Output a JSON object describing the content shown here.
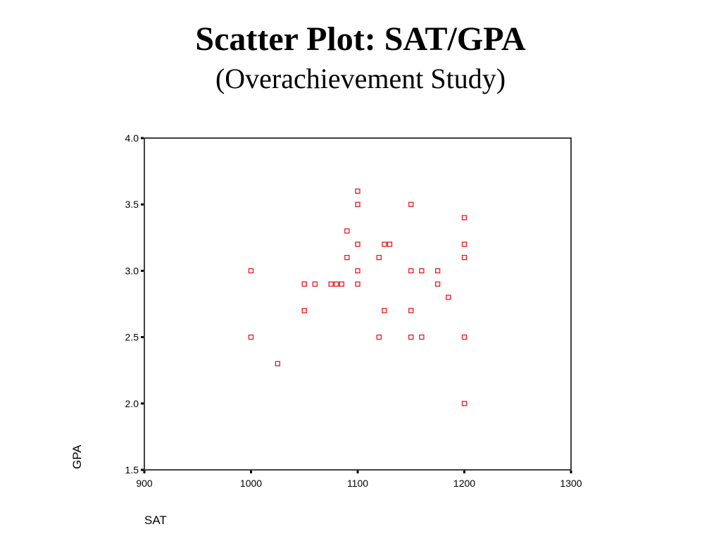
{
  "slide": {
    "title": "Scatter Plot: SAT/GPA",
    "subtitle": "(Overachievement Study)"
  },
  "colors": {
    "marker": "#e31a1c",
    "axis": "#000000",
    "background": "#ffffff"
  },
  "chart_data": {
    "type": "scatter",
    "title": "",
    "xlabel": "SAT",
    "ylabel": "GPA",
    "xlim": [
      900,
      1300
    ],
    "ylim": [
      1.5,
      4.0
    ],
    "x_ticks": [
      "900",
      "1000",
      "1100",
      "1200",
      "1300"
    ],
    "y_ticks": [
      "1.5",
      "2.0",
      "2.5",
      "3.0",
      "3.5",
      "4.0"
    ],
    "grid": false,
    "legend": "none",
    "marker": "hollow-square",
    "series": [
      {
        "points": [
          {
            "x": 1000,
            "y": 3.0
          },
          {
            "x": 1000,
            "y": 2.5
          },
          {
            "x": 1025,
            "y": 2.3
          },
          {
            "x": 1050,
            "y": 2.9
          },
          {
            "x": 1050,
            "y": 2.7
          },
          {
            "x": 1060,
            "y": 2.9
          },
          {
            "x": 1075,
            "y": 2.9
          },
          {
            "x": 1080,
            "y": 2.9
          },
          {
            "x": 1085,
            "y": 2.9
          },
          {
            "x": 1090,
            "y": 3.3
          },
          {
            "x": 1090,
            "y": 3.1
          },
          {
            "x": 1100,
            "y": 3.6
          },
          {
            "x": 1100,
            "y": 3.5
          },
          {
            "x": 1100,
            "y": 3.2
          },
          {
            "x": 1100,
            "y": 3.0
          },
          {
            "x": 1100,
            "y": 2.9
          },
          {
            "x": 1120,
            "y": 3.1
          },
          {
            "x": 1120,
            "y": 2.5
          },
          {
            "x": 1125,
            "y": 3.2
          },
          {
            "x": 1125,
            "y": 2.7
          },
          {
            "x": 1130,
            "y": 3.2
          },
          {
            "x": 1150,
            "y": 3.5
          },
          {
            "x": 1150,
            "y": 3.0
          },
          {
            "x": 1150,
            "y": 2.7
          },
          {
            "x": 1150,
            "y": 2.5
          },
          {
            "x": 1160,
            "y": 3.0
          },
          {
            "x": 1160,
            "y": 2.5
          },
          {
            "x": 1175,
            "y": 3.0
          },
          {
            "x": 1175,
            "y": 2.9
          },
          {
            "x": 1185,
            "y": 2.8
          },
          {
            "x": 1200,
            "y": 3.4
          },
          {
            "x": 1200,
            "y": 3.2
          },
          {
            "x": 1200,
            "y": 3.1
          },
          {
            "x": 1200,
            "y": 2.5
          },
          {
            "x": 1200,
            "y": 2.0
          }
        ]
      }
    ]
  }
}
